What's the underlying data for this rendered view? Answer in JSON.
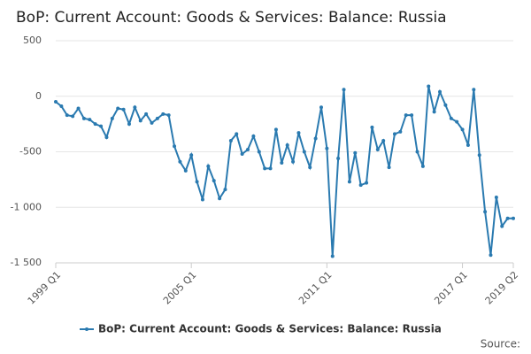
{
  "chart_data": {
    "type": "line",
    "title": "BoP: Current Account: Goods & Services: Balance: Russia",
    "source": "Source:",
    "categories": [
      "1999 Q1",
      null,
      null,
      null,
      null,
      null,
      null,
      null,
      null,
      null,
      null,
      null,
      null,
      null,
      null,
      null,
      null,
      null,
      null,
      null,
      null,
      null,
      null,
      null,
      "2005 Q1",
      null,
      null,
      null,
      null,
      null,
      null,
      null,
      null,
      null,
      null,
      null,
      null,
      null,
      null,
      null,
      null,
      null,
      null,
      null,
      null,
      null,
      null,
      null,
      "2011 Q1",
      null,
      null,
      null,
      null,
      null,
      null,
      null,
      null,
      null,
      null,
      null,
      null,
      null,
      null,
      null,
      null,
      null,
      null,
      null,
      null,
      null,
      null,
      null,
      "2017 Q1",
      null,
      null,
      null,
      null,
      null,
      null,
      null,
      null,
      "2019 Q2"
    ],
    "series": [
      {
        "name": "BoP: Current Account: Goods & Services: Balance: Russia",
        "color": "#2a7ab0",
        "values": [
          -50,
          -90,
          -170,
          -180,
          -110,
          -200,
          -210,
          -250,
          -270,
          -370,
          -200,
          -110,
          -120,
          -250,
          -100,
          -220,
          -160,
          -240,
          -200,
          -160,
          -170,
          -450,
          -590,
          -670,
          -530,
          -770,
          -930,
          -630,
          -760,
          -920,
          -840,
          -400,
          -340,
          -520,
          -480,
          -360,
          -500,
          -650,
          -650,
          -300,
          -600,
          -440,
          -590,
          -330,
          -500,
          -640,
          -380,
          -100,
          -470,
          -1440,
          -560,
          60,
          -770,
          -510,
          -800,
          -780,
          -280,
          -480,
          -400,
          -640,
          -340,
          -320,
          -170,
          -170,
          -500,
          -630,
          90,
          -140,
          40,
          -80,
          -200,
          -230,
          -300,
          -440,
          60,
          -530,
          -1040,
          -1430,
          -910,
          -1170,
          -1100,
          -1100
        ]
      }
    ],
    "ylim": [
      -1500,
      500
    ],
    "yticks": [
      500,
      0,
      -500,
      {
        "value": -1000,
        "label": "-1 000"
      },
      {
        "value": -1500,
        "label": "-1 500"
      }
    ],
    "grid": true
  }
}
